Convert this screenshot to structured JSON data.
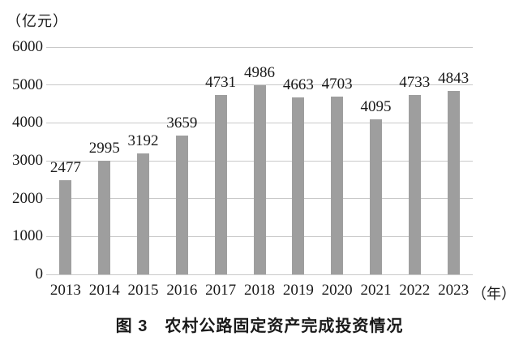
{
  "figure": {
    "y_axis_unit": "（亿元）",
    "x_axis_unit": "（年）",
    "caption": "图 3　农村公路固定资产完成投资情况"
  },
  "chart_data": {
    "type": "bar",
    "title": "图 3　农村公路固定资产完成投资情况",
    "categories": [
      "2013",
      "2014",
      "2015",
      "2016",
      "2017",
      "2018",
      "2019",
      "2020",
      "2021",
      "2022",
      "2023"
    ],
    "values": [
      2477,
      2995,
      3192,
      3659,
      4731,
      4986,
      4663,
      4703,
      4095,
      4733,
      4843
    ],
    "ylabel": "（亿元）",
    "xlabel": "（年）",
    "ylim": [
      0,
      6000
    ],
    "yticks": [
      0,
      1000,
      2000,
      3000,
      4000,
      5000,
      6000
    ],
    "grid": true,
    "legend": false,
    "value_labels": true,
    "colors": {
      "bar": "#9e9e9e",
      "gridline": "#c9c9c9",
      "text": "#1a1a1a",
      "background": "#ffffff"
    }
  }
}
